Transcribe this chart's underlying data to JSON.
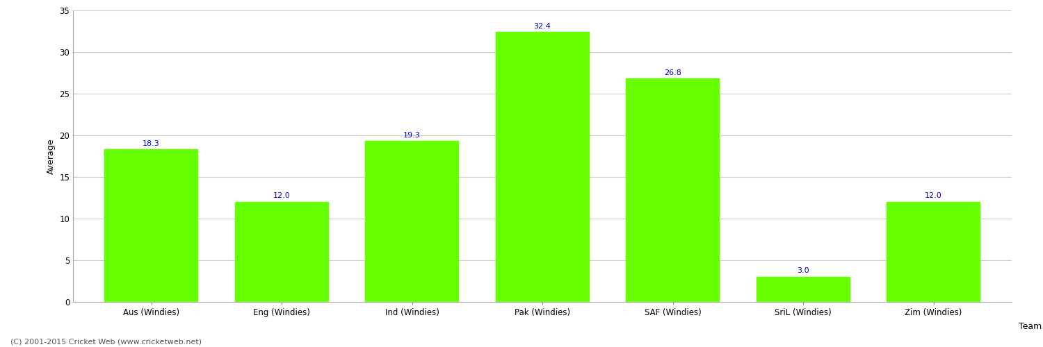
{
  "categories": [
    "Aus (Windies)",
    "Eng (Windies)",
    "Ind (Windies)",
    "Pak (Windies)",
    "SAF (Windies)",
    "SriL (Windies)",
    "Zim (Windies)"
  ],
  "values": [
    18.3,
    12.0,
    19.3,
    32.4,
    26.8,
    3.0,
    12.0
  ],
  "bar_color": "#66ff00",
  "bar_edge_color": "#66ff00",
  "label_color": "#0000cc",
  "xlabel": "Team",
  "ylabel": "Average",
  "ylim": [
    0,
    35
  ],
  "yticks": [
    0,
    5,
    10,
    15,
    20,
    25,
    30,
    35
  ],
  "grid_color": "#cccccc",
  "background_color": "#ffffff",
  "label_fontsize": 8,
  "axis_label_fontsize": 9,
  "tick_fontsize": 8.5,
  "footer_text": "(C) 2001-2015 Cricket Web (www.cricketweb.net)",
  "footer_fontsize": 8,
  "bar_width": 0.72
}
